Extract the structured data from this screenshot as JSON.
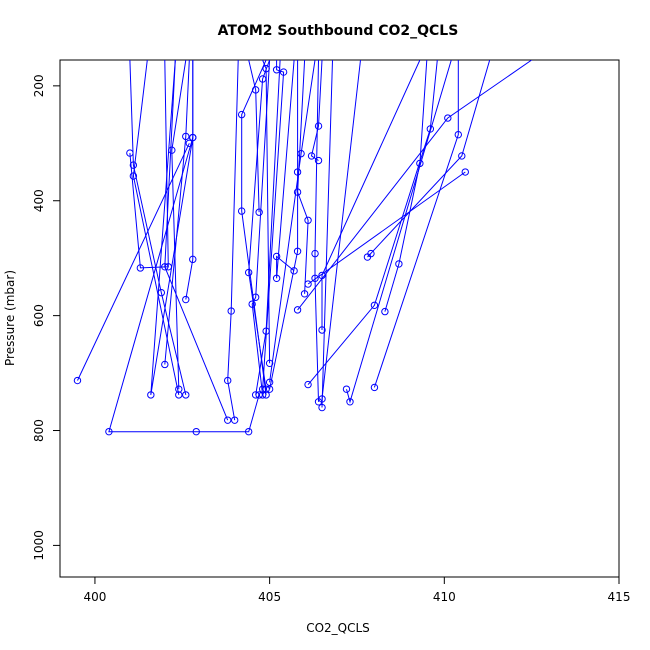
{
  "chart_data": {
    "type": "line",
    "title": "ATOM2 Southbound CO2_QCLS",
    "xlabel": "CO2_QCLS",
    "ylabel": "Pressure (mbar)",
    "xlim": [
      399,
      415
    ],
    "ylim": [
      1055,
      155
    ],
    "y_reversed": true,
    "xticks": [
      400,
      405,
      410,
      415
    ],
    "yticks": [
      200,
      400,
      600,
      800,
      1000
    ],
    "grid": false,
    "legend": "none",
    "marker": "open-circle",
    "color": "#0000ff",
    "series": [
      {
        "points": [
          [
            401.0,
            155
          ],
          [
            401.1,
            338
          ],
          [
            401.9,
            560
          ],
          [
            402.6,
            738
          ]
        ]
      },
      {
        "points": [
          [
            401.5,
            155
          ],
          [
            401.1,
            357
          ],
          [
            402.4,
            738
          ]
        ]
      },
      {
        "points": [
          [
            402.3,
            155
          ],
          [
            402.0,
            515
          ],
          [
            403.8,
            782
          ]
        ]
      },
      {
        "points": [
          [
            402.6,
            155
          ],
          [
            402.2,
            312
          ],
          [
            402.4,
            728
          ]
        ]
      },
      {
        "points": [
          [
            402.8,
            155
          ],
          [
            402.8,
            502
          ],
          [
            402.6,
            572
          ]
        ]
      },
      {
        "points": [
          [
            402.8,
            155
          ],
          [
            402.8,
            290
          ],
          [
            400.4,
            802
          ],
          [
            402.9,
            802
          ],
          [
            404.4,
            802
          ],
          [
            404.7,
            738
          ]
        ]
      },
      {
        "points": [
          [
            402.7,
            155
          ],
          [
            402.6,
            288
          ],
          [
            402.0,
            685
          ]
        ]
      },
      {
        "points": [
          [
            402.3,
            155
          ],
          [
            401.6,
            738
          ],
          [
            402.8,
            290
          ]
        ]
      },
      {
        "points": [
          [
            402.0,
            155
          ],
          [
            402.1,
            515
          ],
          [
            401.3,
            517
          ],
          [
            401.0,
            317
          ]
        ]
      },
      {
        "points": [
          [
            402.7,
            300
          ],
          [
            399.5,
            713
          ]
        ]
      },
      {
        "points": [
          [
            404.9,
            155
          ],
          [
            404.2,
            250
          ],
          [
            404.2,
            418
          ],
          [
            404.9,
            738
          ]
        ]
      },
      {
        "points": [
          [
            404.1,
            155
          ],
          [
            403.9,
            592
          ],
          [
            403.8,
            713
          ],
          [
            404.0,
            782
          ]
        ]
      },
      {
        "points": [
          [
            404.4,
            155
          ],
          [
            404.6,
            207
          ],
          [
            404.7,
            420
          ]
        ]
      },
      {
        "points": [
          [
            405.0,
            155
          ],
          [
            404.8,
            188
          ],
          [
            404.4,
            525
          ],
          [
            404.9,
            728
          ]
        ]
      },
      {
        "points": [
          [
            404.8,
            155
          ],
          [
            404.9,
            170
          ],
          [
            405.0,
            683
          ]
        ]
      },
      {
        "points": [
          [
            405.0,
            155
          ],
          [
            404.6,
            568
          ],
          [
            404.5,
            580
          ],
          [
            404.8,
            738
          ]
        ]
      },
      {
        "points": [
          [
            405.3,
            155
          ],
          [
            404.9,
            627
          ],
          [
            404.6,
            738
          ]
        ]
      },
      {
        "points": [
          [
            405.2,
            155
          ],
          [
            405.2,
            172
          ],
          [
            405.4,
            176
          ],
          [
            404.8,
            728
          ]
        ]
      },
      {
        "points": [
          [
            405.7,
            155
          ],
          [
            405.2,
            535
          ],
          [
            405.2,
            497
          ],
          [
            405.7,
            522
          ]
        ]
      },
      {
        "points": [
          [
            405.8,
            155
          ],
          [
            405.8,
            350
          ],
          [
            405.8,
            488
          ],
          [
            405.0,
            728
          ]
        ]
      },
      {
        "points": [
          [
            406.0,
            155
          ],
          [
            405.8,
            385
          ],
          [
            406.1,
            434
          ],
          [
            406.0,
            562
          ]
        ]
      },
      {
        "points": [
          [
            406.3,
            155
          ],
          [
            405.9,
            318
          ],
          [
            405.0,
            716
          ]
        ]
      },
      {
        "points": [
          [
            406.4,
            155
          ],
          [
            406.3,
            492
          ],
          [
            406.3,
            535
          ],
          [
            406.4,
            750
          ]
        ]
      },
      {
        "points": [
          [
            406.5,
            155
          ],
          [
            406.4,
            270
          ],
          [
            406.2,
            322
          ],
          [
            406.4,
            330
          ]
        ]
      },
      {
        "points": [
          [
            406.8,
            155
          ],
          [
            406.5,
            760
          ]
        ]
      },
      {
        "points": [
          [
            407.6,
            155
          ],
          [
            406.5,
            745
          ]
        ]
      },
      {
        "points": [
          [
            409.3,
            155
          ],
          [
            406.5,
            530
          ],
          [
            406.5,
            625
          ]
        ]
      },
      {
        "points": [
          [
            409.5,
            155
          ],
          [
            409.3,
            335
          ],
          [
            408.7,
            510
          ],
          [
            408.3,
            593
          ]
        ]
      },
      {
        "points": [
          [
            409.8,
            155
          ],
          [
            409.6,
            275
          ],
          [
            408.0,
            582
          ],
          [
            406.1,
            720
          ]
        ]
      },
      {
        "points": [
          [
            410.2,
            155
          ],
          [
            407.3,
            750
          ],
          [
            407.2,
            728
          ]
        ]
      },
      {
        "points": [
          [
            410.4,
            155
          ],
          [
            410.4,
            285
          ],
          [
            408.0,
            725
          ]
        ]
      },
      {
        "points": [
          [
            411.3,
            155
          ],
          [
            410.5,
            322
          ],
          [
            407.8,
            498
          ],
          [
            407.9,
            492
          ]
        ]
      },
      {
        "points": [
          [
            412.5,
            155
          ],
          [
            410.1,
            256
          ],
          [
            405.8,
            590
          ]
        ]
      },
      {
        "points": [
          [
            410.6,
            350
          ],
          [
            406.1,
            545
          ]
        ]
      }
    ]
  }
}
